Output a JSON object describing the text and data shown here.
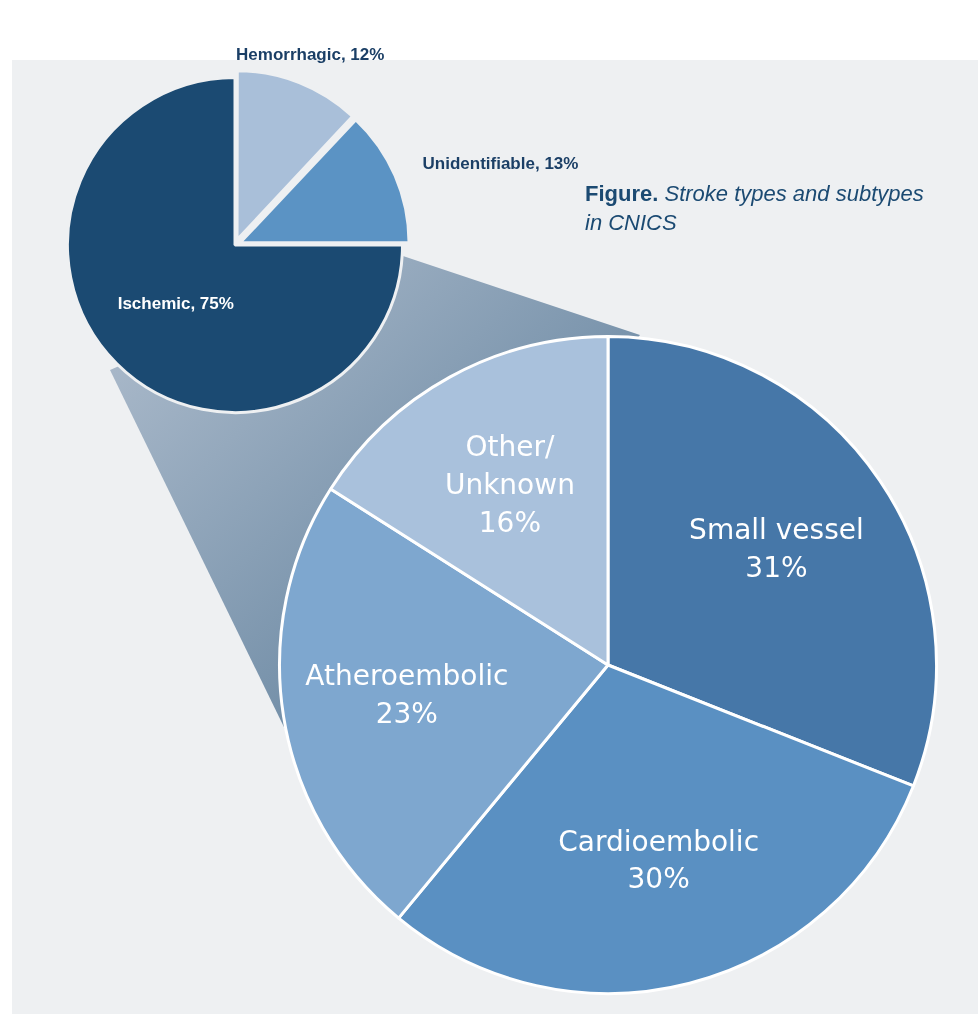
{
  "chart_data": [
    {
      "type": "pie",
      "title": "Figure. Stroke types and subtypes in CNICS",
      "categories": [
        "Hemorrhagic",
        "Unidentifiable",
        "Ischemic"
      ],
      "values": [
        12,
        13,
        75
      ],
      "value_labels": [
        "12%",
        "13%",
        "75%"
      ],
      "colors": [
        "#a9bfd9",
        "#5b93c4",
        "#1b4a72"
      ]
    },
    {
      "type": "pie",
      "categories": [
        "Small vessel",
        "Cardioembolic",
        "Atheroembolic",
        "Other/Unknown"
      ],
      "values": [
        31,
        30,
        23,
        16
      ],
      "value_labels": [
        "31%",
        "30%",
        "23%",
        "16%"
      ],
      "colors": [
        "#4677a8",
        "#5a90c2",
        "#7ea7cf",
        "#a9c1dc"
      ]
    }
  ]
}
